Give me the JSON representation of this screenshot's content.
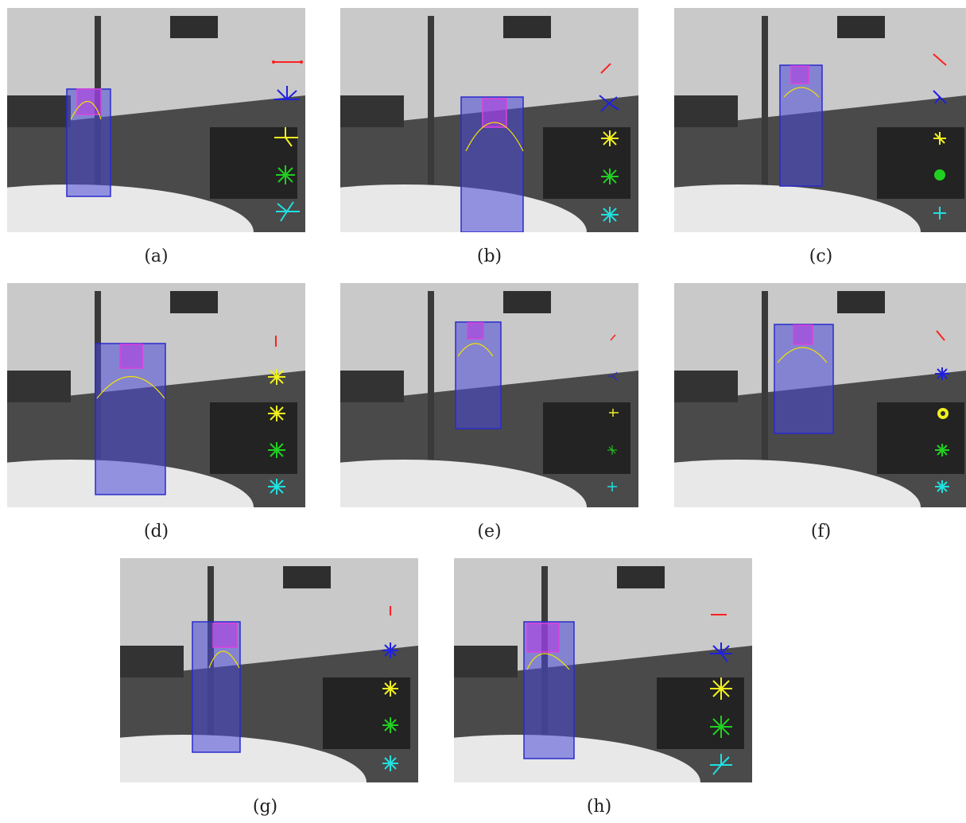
{
  "figure": {
    "panels": [
      {
        "id": "a",
        "caption": "(a)"
      },
      {
        "id": "b",
        "caption": "(b)"
      },
      {
        "id": "c",
        "caption": "(c)"
      },
      {
        "id": "d",
        "caption": "(d)"
      },
      {
        "id": "e",
        "caption": "(e)"
      },
      {
        "id": "f",
        "caption": "(f)"
      },
      {
        "id": "g",
        "caption": "(g)"
      },
      {
        "id": "h",
        "caption": "(h)"
      }
    ],
    "colors": {
      "bbox": "#2a2acc",
      "bbox_fill": "#4848d8",
      "head_box": "#e040e0",
      "contour": "#f5e100",
      "glyph_red": "#ff2020",
      "glyph_blue": "#2020e0",
      "glyph_yellow": "#f0f020",
      "glyph_green": "#20d020",
      "glyph_cyan": "#20e0e0"
    }
  }
}
